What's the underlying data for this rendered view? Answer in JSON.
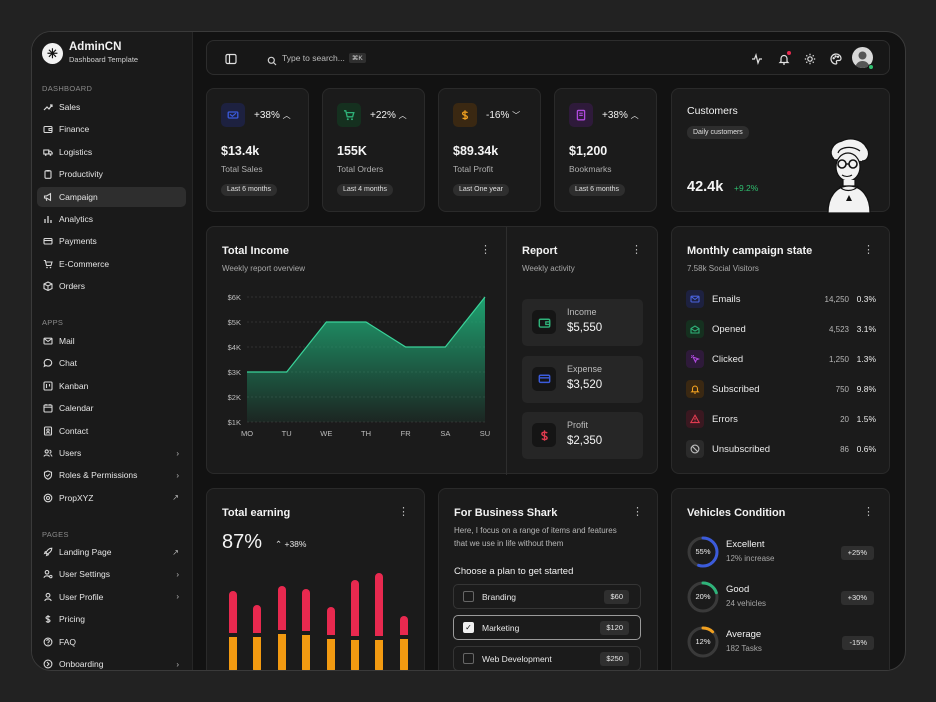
{
  "brand": {
    "title": "AdminCN",
    "subtitle": "Dashboard Template"
  },
  "sidebar": {
    "sections": [
      "DASHBOARD",
      "APPS",
      "PAGES"
    ],
    "dashboard": [
      {
        "label": "Sales",
        "icon": "trend-icon"
      },
      {
        "label": "Finance",
        "icon": "wallet-icon"
      },
      {
        "label": "Logistics",
        "icon": "truck-icon"
      },
      {
        "label": "Productivity",
        "icon": "clipboard-icon"
      },
      {
        "label": "Campaign",
        "icon": "megaphone-icon",
        "active": true
      },
      {
        "label": "Analytics",
        "icon": "chart-icon"
      },
      {
        "label": "Payments",
        "icon": "card-icon"
      },
      {
        "label": "E-Commerce",
        "icon": "cart-icon"
      },
      {
        "label": "Orders",
        "icon": "box-icon"
      }
    ],
    "apps": [
      {
        "label": "Mail",
        "icon": "mail-icon"
      },
      {
        "label": "Chat",
        "icon": "chat-icon"
      },
      {
        "label": "Kanban",
        "icon": "kanban-icon"
      },
      {
        "label": "Calendar",
        "icon": "calendar-icon"
      },
      {
        "label": "Contact",
        "icon": "contact-icon"
      },
      {
        "label": "Users",
        "icon": "users-icon",
        "trail": "›"
      },
      {
        "label": "Roles & Permissions",
        "icon": "shield-icon",
        "trail": "›"
      },
      {
        "label": "PropXYZ",
        "icon": "badge-icon",
        "trail": "↗"
      }
    ],
    "pages": [
      {
        "label": "Landing Page",
        "icon": "rocket-icon",
        "trail": "↗"
      },
      {
        "label": "User Settings",
        "icon": "user-gear-icon",
        "trail": "›"
      },
      {
        "label": "User Profile",
        "icon": "user-icon",
        "trail": "›"
      },
      {
        "label": "Pricing",
        "icon": "dollar-icon"
      },
      {
        "label": "FAQ",
        "icon": "help-icon"
      },
      {
        "label": "Onboarding",
        "icon": "onboarding-icon",
        "trail": "›"
      }
    ]
  },
  "topbar": {
    "search_placeholder": "Type to search...",
    "shortcut": "⌘K"
  },
  "stats": [
    {
      "change": "+38%",
      "dir": "up",
      "value": "$13.4k",
      "label": "Total Sales",
      "period": "Last 6 months",
      "color": "#3b5bdb",
      "bg": "#1d2140",
      "icon": "ticket-icon"
    },
    {
      "change": "+22%",
      "dir": "up",
      "value": "155K",
      "label": "Total Orders",
      "period": "Last 4 months",
      "color": "#2fb37a",
      "bg": "#15301f",
      "icon": "cart-icon"
    },
    {
      "change": "-16%",
      "dir": "down",
      "value": "$89.34k",
      "label": "Total Profit",
      "period": "Last One year",
      "color": "#f0a020",
      "bg": "#3a2812",
      "icon": "dollar-icon"
    },
    {
      "change": "+38%",
      "dir": "up",
      "value": "$1,200",
      "label": "Bookmarks",
      "period": "Last 6 months",
      "color": "#b04adf",
      "bg": "#2e1a3a",
      "icon": "bookmark-icon"
    }
  ],
  "customers": {
    "title": "Customers",
    "tag": "Daily customers",
    "value": "42.4k",
    "change": "+9.2%"
  },
  "income": {
    "title": "Total Income",
    "subtitle": "Weekly report overview",
    "report_title": "Report",
    "report_subtitle": "Weekly activity",
    "report": [
      {
        "label": "Income",
        "value": "$5,550",
        "color": "#2fb37a",
        "icon": "wallet-icon"
      },
      {
        "label": "Expense",
        "value": "$3,520",
        "color": "#3b5bdb",
        "icon": "card-icon"
      },
      {
        "label": "Profit",
        "value": "$2,350",
        "color": "#e03b4f",
        "icon": "dollar-icon"
      }
    ]
  },
  "chart_data": {
    "type": "area",
    "categories": [
      "MO",
      "TU",
      "WE",
      "TH",
      "FR",
      "SA",
      "SU"
    ],
    "values": [
      3,
      3,
      5,
      5,
      4,
      4,
      6
    ],
    "y_ticks": [
      "$1K",
      "$2K",
      "$3K",
      "$4K",
      "$5K",
      "$6K"
    ],
    "ylim": [
      1,
      6
    ],
    "color": "#1fa774",
    "grid": true
  },
  "campaign": {
    "title": "Monthly campaign state",
    "subtitle": "7.58k Social Visitors",
    "rows": [
      {
        "label": "Emails",
        "count": "14,250",
        "pct": "0.3%",
        "color": "#4a64e0",
        "bg": "#1d2140",
        "icon": "mail-icon"
      },
      {
        "label": "Opened",
        "count": "4,523",
        "pct": "3.1%",
        "color": "#2fb37a",
        "bg": "#15301f",
        "icon": "mail-open-icon"
      },
      {
        "label": "Clicked",
        "count": "1,250",
        "pct": "1.3%",
        "color": "#b04adf",
        "bg": "#2e1a3a",
        "icon": "click-icon"
      },
      {
        "label": "Subscribed",
        "count": "750",
        "pct": "9.8%",
        "color": "#f0a020",
        "bg": "#3a2812",
        "icon": "bell-icon"
      },
      {
        "label": "Errors",
        "count": "20",
        "pct": "1.5%",
        "color": "#e03b4f",
        "bg": "#3a1820",
        "icon": "alert-icon"
      },
      {
        "label": "Unsubscribed",
        "count": "86",
        "pct": "0.6%",
        "color": "#bdbdbd",
        "bg": "#2b2b2b",
        "icon": "ban-icon"
      }
    ]
  },
  "earning": {
    "title": "Total earning",
    "value": "87%",
    "change": "+38%",
    "bars": [
      {
        "top": 0.45,
        "bottom": 0.38
      },
      {
        "top": 0.3,
        "bottom": 0.38
      },
      {
        "top": 0.47,
        "bottom": 0.41
      },
      {
        "top": 0.45,
        "bottom": 0.4
      },
      {
        "top": 0.3,
        "bottom": 0.36
      },
      {
        "top": 0.6,
        "bottom": 0.35
      },
      {
        "top": 0.67,
        "bottom": 0.35
      },
      {
        "top": 0.2,
        "bottom": 0.36
      }
    ],
    "top_color": "#e8294f",
    "bottom_color": "#f29a11"
  },
  "business": {
    "title": "For Business Shark",
    "desc1": "Here, I focus on a range of items and features",
    "desc2": "that we use in life without them",
    "prompt": "Choose a plan to get started",
    "plans": [
      {
        "label": "Branding",
        "price": "$60",
        "checked": false
      },
      {
        "label": "Marketing",
        "price": "$120",
        "checked": true
      },
      {
        "label": "Web Development",
        "price": "$250",
        "checked": false
      }
    ]
  },
  "vehicles": {
    "title": "Vehicles Condition",
    "rows": [
      {
        "pct": "55%",
        "fraction": 0.55,
        "title": "Excellent",
        "sub": "12% increase",
        "badge": "+25%",
        "color": "#3b5bdb"
      },
      {
        "pct": "20%",
        "fraction": 0.2,
        "title": "Good",
        "sub": "24 vehicles",
        "badge": "+30%",
        "color": "#2fb37a"
      },
      {
        "pct": "12%",
        "fraction": 0.12,
        "title": "Average",
        "sub": "182 Tasks",
        "badge": "-15%",
        "color": "#f0a020"
      }
    ]
  }
}
